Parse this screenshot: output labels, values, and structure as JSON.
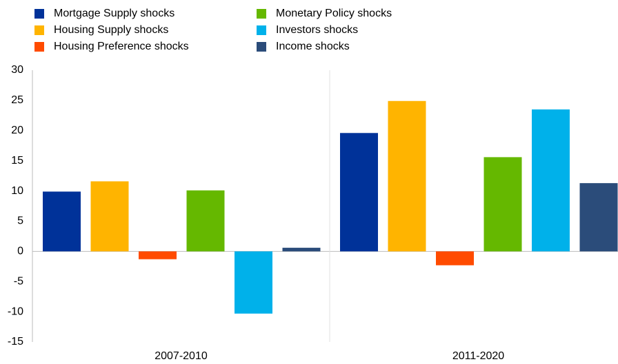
{
  "chart_data": {
    "type": "bar",
    "categories": [
      "2007-2010",
      "2011-2020"
    ],
    "series": [
      {
        "name": "Mortgage Supply shocks",
        "color": "#003299",
        "values": [
          9.9,
          19.6
        ]
      },
      {
        "name": "Housing Supply shocks",
        "color": "#ffb400",
        "values": [
          11.6,
          24.9
        ]
      },
      {
        "name": "Housing Preference shocks",
        "color": "#ff4b00",
        "values": [
          -1.3,
          -2.3
        ]
      },
      {
        "name": "Monetary Policy shocks",
        "color": "#65b800",
        "values": [
          10.1,
          15.6
        ]
      },
      {
        "name": "Investors shocks",
        "color": "#00b1ea",
        "values": [
          -10.3,
          23.5
        ]
      },
      {
        "name": "Income shocks",
        "color": "#2b4c7a",
        "values": [
          0.6,
          11.3
        ]
      }
    ],
    "ylim": [
      -15,
      30
    ],
    "yticks": [
      -15,
      -10,
      -5,
      0,
      5,
      10,
      15,
      20,
      25,
      30
    ],
    "grid": false
  }
}
